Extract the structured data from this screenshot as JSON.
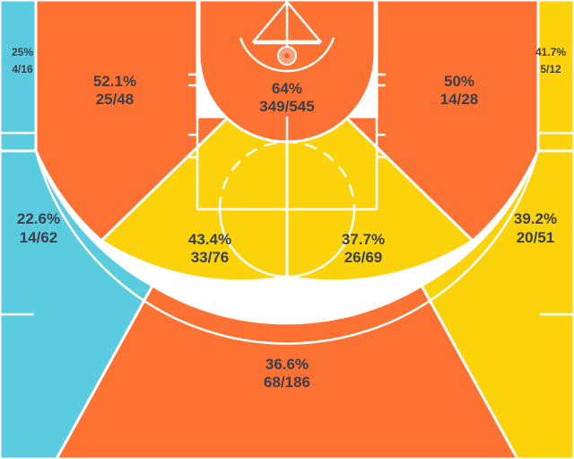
{
  "legend_colors": {
    "cold": "#5bcbe0",
    "average": "#fcd20a",
    "hot": "#fd7232"
  },
  "zones": [
    {
      "id": "left-corner-three",
      "pct": "25%",
      "made_att": "4/16",
      "color": "#5bcbe0"
    },
    {
      "id": "right-corner-three",
      "pct": "41.7%",
      "made_att": "5/12",
      "color": "#fcd20a"
    },
    {
      "id": "left-baseline-midrange",
      "pct": "52.1%",
      "made_att": "25/48",
      "color": "#fd7232"
    },
    {
      "id": "restricted-area",
      "pct": "64%",
      "made_att": "349/545",
      "color": "#fd7232"
    },
    {
      "id": "right-baseline-midrange",
      "pct": "50%",
      "made_att": "14/28",
      "color": "#fd7232"
    },
    {
      "id": "left-wing-three",
      "pct": "22.6%",
      "made_att": "14/62",
      "color": "#5bcbe0"
    },
    {
      "id": "left-elbow-midrange",
      "pct": "43.4%",
      "made_att": "33/76",
      "color": "#fcd20a"
    },
    {
      "id": "right-elbow-midrange",
      "pct": "37.7%",
      "made_att": "26/69",
      "color": "#fcd20a"
    },
    {
      "id": "right-wing-three",
      "pct": "39.2%",
      "made_att": "20/51",
      "color": "#fcd20a"
    },
    {
      "id": "top-of-key-three",
      "pct": "36.6%",
      "made_att": "68/186",
      "color": "#fd7232"
    }
  ]
}
